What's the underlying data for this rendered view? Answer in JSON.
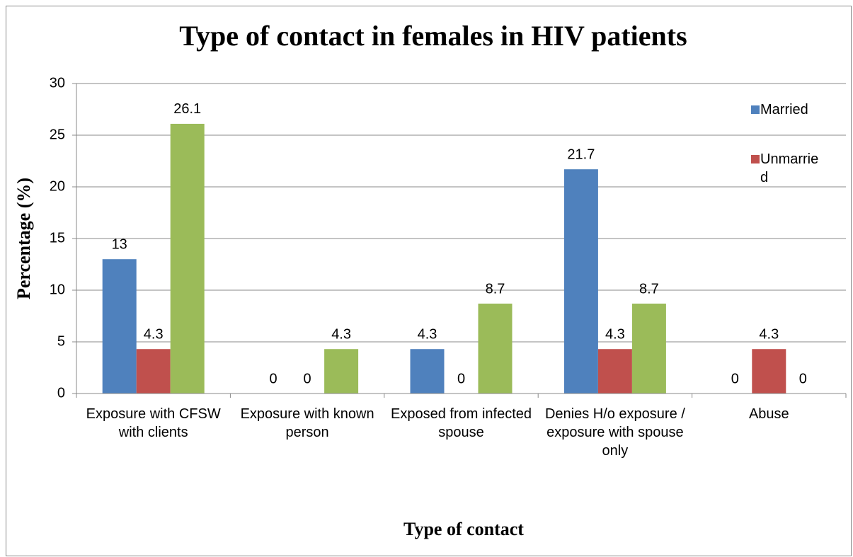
{
  "chart_data": {
    "type": "bar",
    "title": "Type of contact in females in HIV patients",
    "x_label": "Type of contact",
    "y_label": "Percentage (%)",
    "categories": [
      "Exposure with CFSW with clients",
      "Exposure with known person",
      "Exposed from infected spouse",
      "Denies H/o exposure / exposure with spouse only",
      "Abuse"
    ],
    "series": [
      {
        "name": "Married",
        "color": "#4f81bd",
        "values": [
          13,
          0,
          4.3,
          21.7,
          0
        ]
      },
      {
        "name": "Unmarried",
        "color": "#c0504d",
        "values": [
          4.3,
          0,
          0,
          4.3,
          4.3
        ]
      },
      {
        "color": "#9bbb59",
        "values": [
          26.1,
          4.3,
          8.7,
          8.7,
          0
        ]
      }
    ],
    "ylim": [
      0,
      30
    ],
    "yticks": [
      0,
      5,
      10,
      15,
      20,
      25,
      30
    ],
    "grid": true,
    "legend": "right"
  }
}
